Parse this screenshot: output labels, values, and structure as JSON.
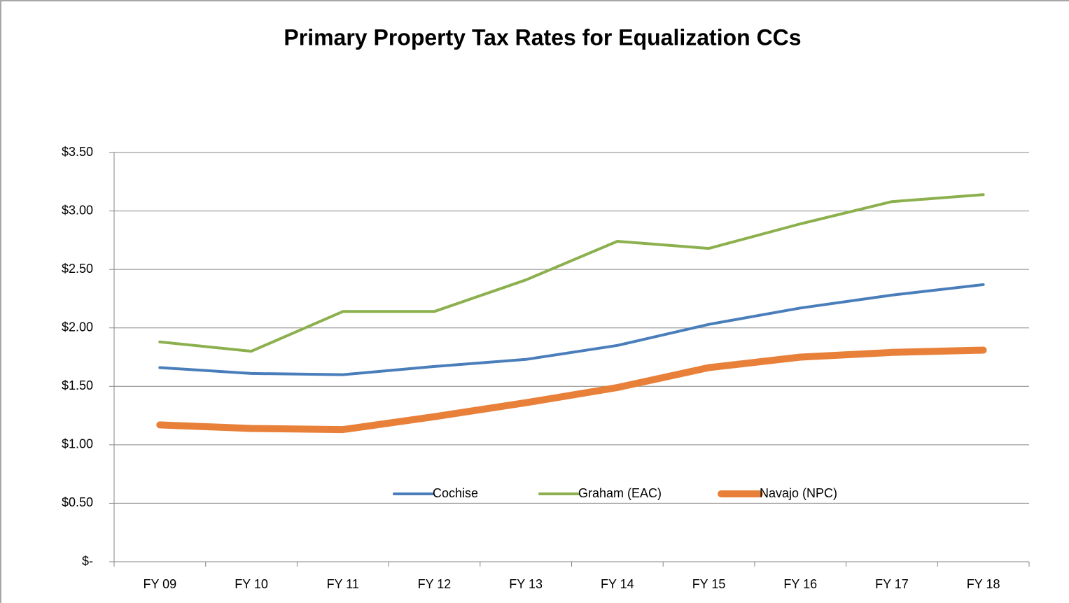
{
  "chart_data": {
    "type": "line",
    "title": "Primary Property Tax Rates for Equalization CCs",
    "categories": [
      "FY 09",
      "FY 10",
      "FY 11",
      "FY 12",
      "FY 13",
      "FY 14",
      "FY 15",
      "FY 16",
      "FY 17",
      "FY 18"
    ],
    "series": [
      {
        "name": "Cochise",
        "color": "#4a7ebb",
        "width": 4,
        "values": [
          1.66,
          1.61,
          1.6,
          1.67,
          1.73,
          1.85,
          2.03,
          2.17,
          2.28,
          2.37
        ]
      },
      {
        "name": "Graham (EAC)",
        "color": "#8cb04e",
        "width": 4,
        "values": [
          1.88,
          1.8,
          2.14,
          2.14,
          2.41,
          2.74,
          2.68,
          2.89,
          3.08,
          3.14
        ]
      },
      {
        "name": "Navajo (NPC)",
        "color": "#e8803a",
        "width": 10,
        "values": [
          1.17,
          1.14,
          1.13,
          1.24,
          1.36,
          1.49,
          1.66,
          1.75,
          1.79,
          1.81
        ]
      }
    ],
    "ylim": [
      0,
      3.5
    ],
    "yticks": [
      {
        "value": 0,
        "label": "$-"
      },
      {
        "value": 0.5,
        "label": "$0.50"
      },
      {
        "value": 1,
        "label": "$1.00"
      },
      {
        "value": 1.5,
        "label": "$1.50"
      },
      {
        "value": 2,
        "label": "$2.00"
      },
      {
        "value": 2.5,
        "label": "$2.50"
      },
      {
        "value": 3,
        "label": "$3.00"
      },
      {
        "value": 3.5,
        "label": "$3.50"
      }
    ],
    "grid": true,
    "legend": "bottom"
  }
}
